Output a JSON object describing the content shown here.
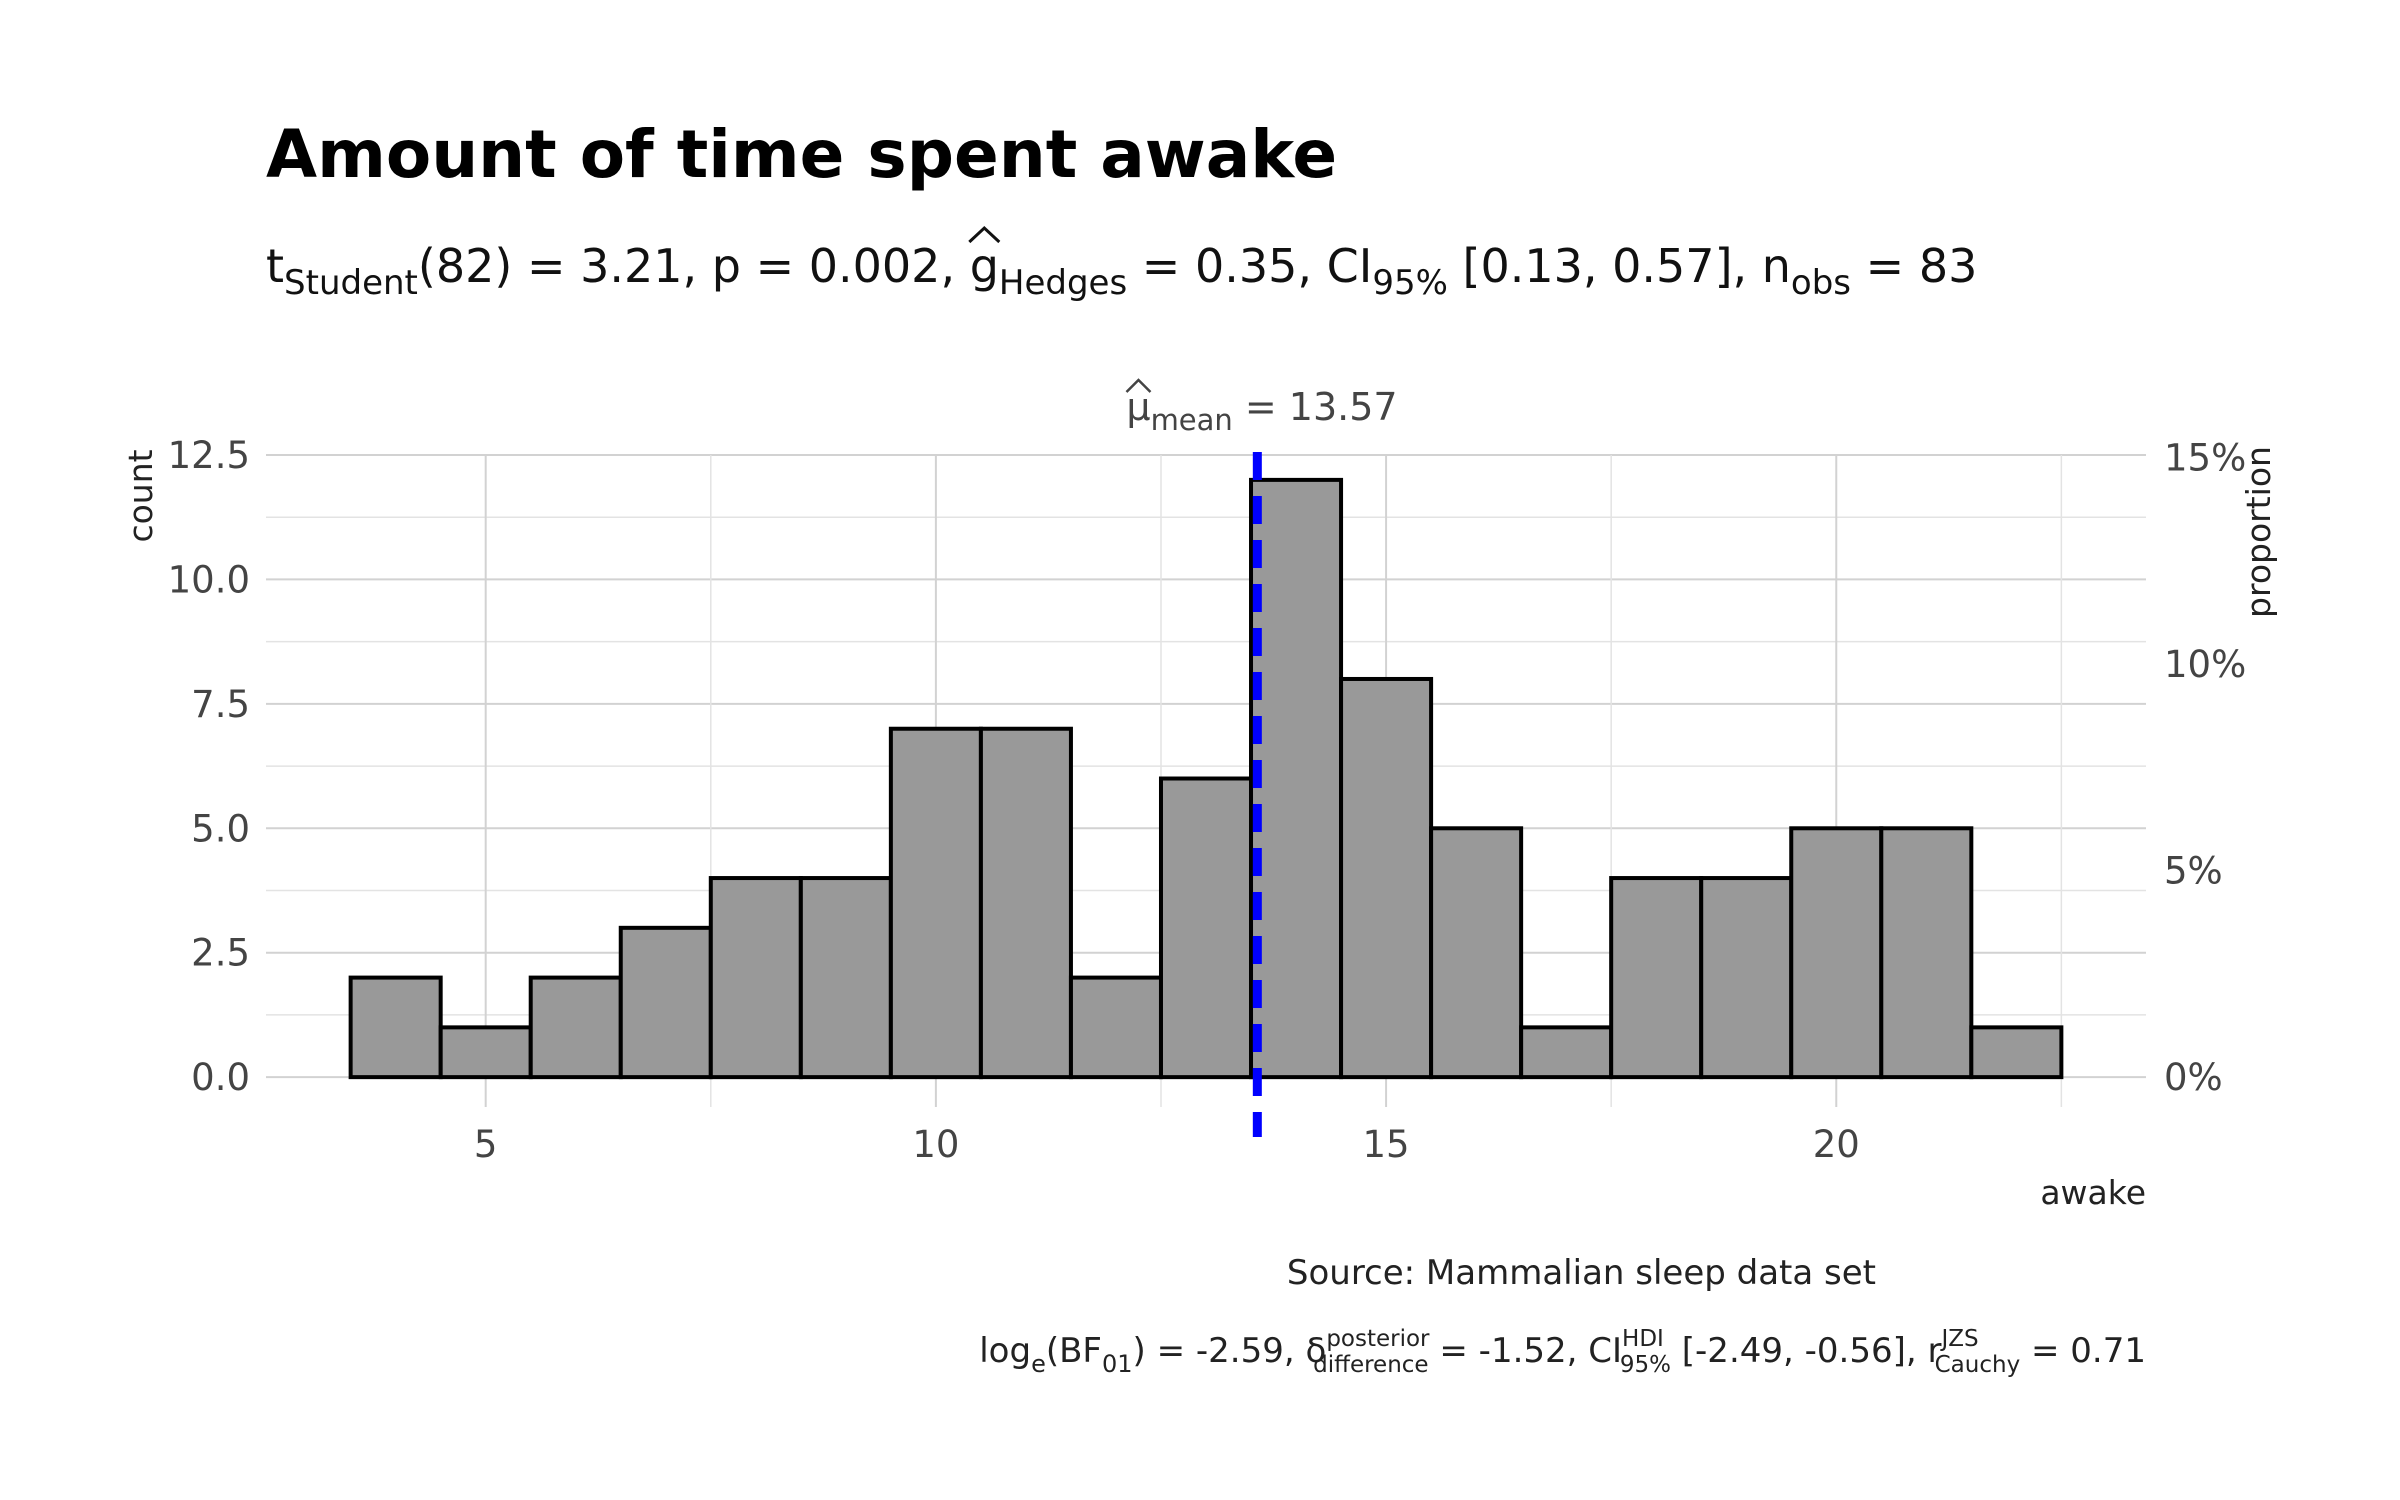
{
  "chart_data": {
    "type": "bar",
    "title": "Amount of time spent awake",
    "subtitle": {
      "t_label": "t",
      "t_sub": "Student",
      "t_df": "(82) = 3.21, p = 0.002, ",
      "g_label": "g",
      "g_sub": "Hedges",
      "g_value": " = 0.35, CI",
      "ci_sub": "95%",
      "ci_value": " [0.13, 0.57], n",
      "n_sub": "obs",
      "n_value": " = 83"
    },
    "xlabel": "awake",
    "ylabel": "count",
    "y2label": "proportion",
    "xlim": [
      2.56,
      23.44
    ],
    "ylim": [
      -0.6,
      12.5
    ],
    "x_ticks": [
      5,
      10,
      15,
      20
    ],
    "x_tick_labels": [
      "5",
      "10",
      "15",
      "20"
    ],
    "y_ticks": [
      0,
      2.5,
      5,
      7.5,
      10,
      12.5
    ],
    "y_tick_labels": [
      "0.0",
      "2.5",
      "5.0",
      "7.5",
      "10.0",
      "12.5"
    ],
    "y2_ticks_percent": [
      0,
      5,
      10,
      15
    ],
    "y2_tick_labels": [
      "0%",
      "5%",
      "10%",
      "15%"
    ],
    "n_obs": 83,
    "bin_width": 1,
    "bin_centers": [
      4,
      5,
      6,
      7,
      8,
      9,
      10,
      11,
      12,
      13,
      14,
      15,
      16,
      17,
      18,
      19,
      20,
      21,
      22
    ],
    "counts": [
      2,
      1,
      2,
      3,
      4,
      4,
      7,
      7,
      2,
      6,
      12,
      8,
      5,
      1,
      4,
      4,
      5,
      5,
      1
    ],
    "bar_color": "#999999",
    "mean_value": 13.57,
    "mean_line_color": "#0000FF",
    "mean_label": {
      "mu": "μ",
      "sub": "mean",
      "value": " = 13.57"
    },
    "caption": "Source: Mammalian sleep data set",
    "bayes": {
      "log": "log",
      "log_sub": "e",
      "bf": "(BF",
      "bf_sub": "01",
      "bf_value": ") = -2.59, ",
      "delta": "δ",
      "delta_sup": "posterior",
      "delta_sub": "difference",
      "delta_value": " = -1.52, CI",
      "ci_sup": "HDI",
      "ci_sub": "95%",
      "ci_value": " [-2.49, -0.56], r",
      "r_sup": "JZS",
      "r_sub": "Cauchy",
      "r_value": " = 0.71"
    }
  }
}
